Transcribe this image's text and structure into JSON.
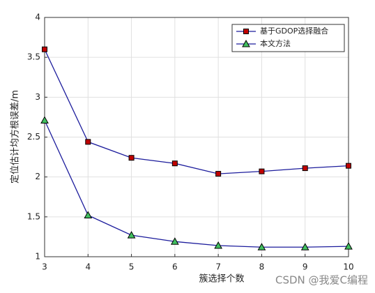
{
  "chart_data": {
    "type": "line",
    "x_label": "簇选择个数",
    "y_label": "定位估计均方根误差/m",
    "x": [
      3,
      4,
      5,
      6,
      7,
      8,
      9,
      10
    ],
    "series": [
      {
        "name": "基于GDOP选择融合",
        "color": "#1c1c9c",
        "marker": "square",
        "marker_color": "#c00000",
        "values": [
          3.6,
          2.44,
          2.24,
          2.17,
          2.04,
          2.07,
          2.11,
          2.14
        ]
      },
      {
        "name": "本文方法",
        "color": "#1c1c9c",
        "marker": "triangle",
        "marker_color": "#40c060",
        "values": [
          2.71,
          1.52,
          1.27,
          1.19,
          1.14,
          1.12,
          1.12,
          1.13
        ]
      }
    ],
    "xlim": [
      3,
      10
    ],
    "xticks": [
      3,
      4,
      5,
      6,
      7,
      8,
      9,
      10
    ],
    "ylim": [
      1,
      4
    ],
    "yticks": [
      1,
      1.5,
      2,
      2.5,
      3,
      3.5,
      4
    ],
    "grid": true,
    "legend": "upper right",
    "watermark": "CSDN @我爱C编程"
  }
}
